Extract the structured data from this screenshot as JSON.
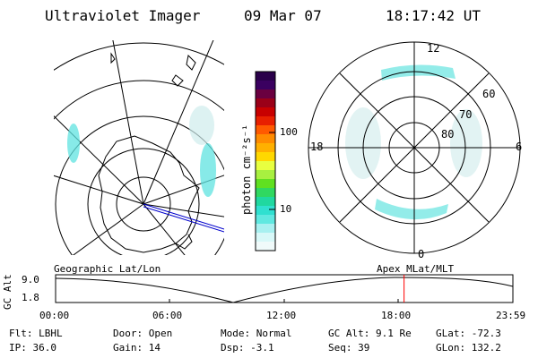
{
  "header": {
    "title": "Ultraviolet Imager",
    "date": "09 Mar 07",
    "time": "18:17:42 UT"
  },
  "colorbar": {
    "unit": "photon cm⁻²s⁻¹",
    "ticks": [
      "100",
      "10"
    ],
    "colors": [
      "#2a004a",
      "#3a0060",
      "#6a0040",
      "#9a0018",
      "#c80000",
      "#e82000",
      "#ff5a00",
      "#ff8c00",
      "#ffb000",
      "#ffd800",
      "#e8ff40",
      "#a8f040",
      "#60e020",
      "#30d860",
      "#20d8a0",
      "#30e0d0",
      "#60e8e0",
      "#a8f0f0",
      "#d8f8f8",
      "#f0fafa"
    ]
  },
  "polar_right": {
    "mlt_labels": {
      "top": "12",
      "left": "18",
      "right": "6",
      "bottom": "0"
    },
    "lat_labels": [
      "60",
      "70",
      "80"
    ]
  },
  "timeline": {
    "ylabel": "GC Alt",
    "yticks": [
      "9.0",
      "1.8"
    ],
    "left_label": "Geographic Lat/Lon",
    "right_label": "Apex  MLat/MLT",
    "xticks": [
      "00:00",
      "06:00",
      "12:00",
      "18:00",
      "23:59"
    ],
    "current_time_fraction": 0.762
  },
  "status": {
    "row1": [
      "Flt: LBHL",
      "Door: Open",
      "Mode: Normal",
      "GC Alt: 9.1 Re",
      "GLat: -72.3"
    ],
    "row2": [
      "IP: 36.0",
      "Gain: 14",
      "Dsp:   -3.1",
      "Seq: 39",
      "GLon: 132.2"
    ]
  }
}
